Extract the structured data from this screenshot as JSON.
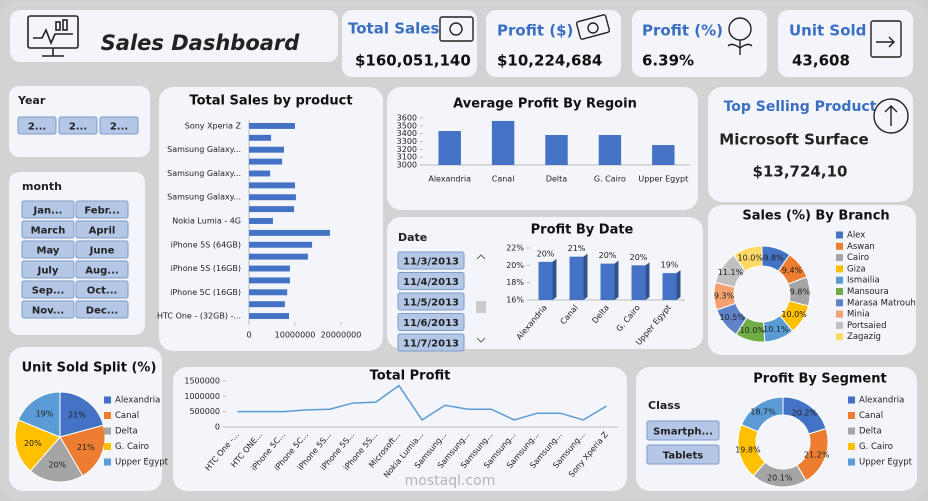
{
  "header": {
    "title": "Sales Dashboard"
  },
  "kpis": [
    {
      "label": "Total Sales",
      "value": "$160,051,140"
    },
    {
      "label": "Profit ($)",
      "value": "$10,224,684"
    },
    {
      "label": "Profit (%)",
      "value": "6.39%"
    },
    {
      "label": "Unit Sold",
      "value": "43,608"
    }
  ],
  "top_selling": {
    "label": "Top Selling Product",
    "product": "Microsoft Surface",
    "value": "$13,724,10"
  },
  "slicers": [
    {
      "title": "Year",
      "items": [
        "2...",
        "2...",
        "2..."
      ]
    },
    {
      "title": "month",
      "items": [
        "Jan...",
        "Febr...",
        "March",
        "April",
        "May",
        "June",
        "July",
        "Aug...",
        "Sep...",
        "Oct...",
        "Nov...",
        "Dec..."
      ]
    },
    {
      "title": "Date",
      "items": [
        "11/3/2013",
        "11/4/2013",
        "11/5/2013",
        "11/6/2013",
        "11/7/2013"
      ]
    },
    {
      "title": "Class",
      "items": [
        "Smartph...",
        "Tablets"
      ]
    }
  ],
  "watermark": "mostaql.com",
  "chart_data": [
    {
      "type": "bar",
      "orientation": "horizontal",
      "title": "Total Sales by product",
      "color": "#4472c4",
      "categories": [
        "Sony Xperia Z",
        null,
        "Samsung Galaxy...",
        null,
        "Samsung Galaxy...",
        null,
        "Samsung Galaxy...",
        null,
        "Nokia Lumia - 4G",
        null,
        "iPhone 5S (64GB)",
        null,
        "iPhone 5S (16GB)",
        null,
        "iPhone 5C (16GB)",
        null,
        "HTC One - (32GB) -..."
      ],
      "values": [
        10000000,
        4800000,
        7600000,
        7200000,
        4600000,
        10000000,
        10200000,
        9800000,
        5200000,
        17600000,
        13700000,
        12800000,
        8900000,
        8900000,
        8300000,
        7800000,
        8700000
      ],
      "xlim": [
        0,
        20000000
      ],
      "xticks": [
        0,
        10000000,
        20000000
      ]
    },
    {
      "type": "bar",
      "title": "Average Profit By Regoin",
      "color": "#4472c4",
      "categories": [
        "Alexandria",
        "Canal",
        "Delta",
        "G. Cairo",
        "Upper Egypt"
      ],
      "values": [
        3434,
        3562,
        3383,
        3383,
        3255
      ],
      "ylim": [
        3000,
        3600
      ],
      "yticks": [
        3000,
        3100,
        3200,
        3300,
        3400,
        3500,
        3600
      ]
    },
    {
      "type": "bar",
      "title": "Profit By Date",
      "color": "#4472c4",
      "categories": [
        "Alexandria",
        "Canal",
        "Delta",
        "G. Cairo",
        "Upper Egypt"
      ],
      "values": [
        20.4,
        21.0,
        20.2,
        20.0,
        19.1
      ],
      "value_labels": [
        "20%",
        "21%",
        "20%",
        "20%",
        "19%"
      ],
      "ylim": [
        16,
        22
      ],
      "yticks": [
        {
          "value": 16,
          "label": "16%"
        },
        {
          "value": 18,
          "label": "18%"
        },
        {
          "value": 20,
          "label": "20%"
        },
        {
          "value": 22,
          "label": "22%"
        }
      ]
    },
    {
      "type": "donut",
      "title": "Sales (%) By Branch",
      "categories": [
        "Alex",
        "Aswan",
        "Cairo",
        "Giza",
        "Ismailia",
        "Mansoura",
        "Marasa Matrouh",
        "Minia",
        "Portsaied",
        "Zagazig"
      ],
      "values": [
        9.8,
        9.4,
        9.8,
        10.0,
        10.1,
        10.0,
        10.5,
        9.3,
        11.1,
        10.0
      ],
      "value_labels": [
        "9.8%",
        "9.4%",
        "9.8%",
        "10.0%",
        "10.1%",
        "10.0%",
        "10.5%",
        "9.3%",
        "11.1%",
        "10.0%"
      ],
      "colors": [
        "#4472c4",
        "#ed7d31",
        "#a5a5a5",
        "#ffc000",
        "#5b9bd5",
        "#70ad47",
        "#5f83c9",
        "#f4a070",
        "#c0c0c0",
        "#ffd966"
      ],
      "legend": "right"
    },
    {
      "type": "pie",
      "title": "Unit Sold Split (%)",
      "categories": [
        "Alexandria",
        "Canal",
        "Delta",
        "G. Cairo",
        "Upper Egypt"
      ],
      "values": [
        21,
        21,
        20,
        20,
        19
      ],
      "value_labels": [
        "21%",
        "21%",
        "20%",
        "20%",
        "19%"
      ],
      "colors": [
        "#4472c4",
        "#ed7d31",
        "#a5a5a5",
        "#ffc000",
        "#5b9bd5"
      ],
      "legend": "right"
    },
    {
      "type": "line",
      "title": "Total Profit",
      "color": "#5b9bd5",
      "categories": [
        "HTC One -...",
        "HTC ONE...",
        "iPhone 5C...",
        "iPhone 5C...",
        "iPhone 5S...",
        "iPhone 5S...",
        "iPhone 5S...",
        "Microsoft...",
        "Nokia Lumia...",
        "Samsung...",
        "Samsung...",
        "Samsung...",
        "Samsung...",
        "Samsung...",
        "Samsung...",
        "Samsung...",
        "Sony Xperia Z"
      ],
      "values": [
        500000,
        500000,
        500000,
        560000,
        580000,
        780000,
        810000,
        1350000,
        230000,
        710000,
        580000,
        580000,
        230000,
        450000,
        450000,
        230000,
        680000
      ],
      "ylim": [
        0,
        1500000
      ],
      "yticks": [
        0,
        500000,
        1000000,
        1500000
      ]
    },
    {
      "type": "donut",
      "title": "Profit By Segment",
      "categories": [
        "Alexandria",
        "Canal",
        "Delta",
        "G. Cairo",
        "Upper Egypt"
      ],
      "values": [
        20.2,
        21.2,
        20.1,
        19.8,
        18.7
      ],
      "value_labels": [
        "20.2%",
        "21.2%",
        "20.1%",
        "19.8%",
        "18.7%"
      ],
      "colors": [
        "#4472c4",
        "#ed7d31",
        "#a5a5a5",
        "#ffc000",
        "#5b9bd5"
      ],
      "legend": "right"
    }
  ]
}
